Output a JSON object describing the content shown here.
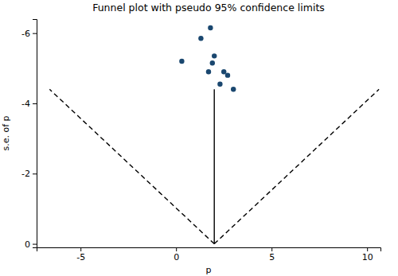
{
  "chart_data": {
    "type": "scatter",
    "title": "Funnel plot with pseudo 95% confidence limits",
    "x_label": "p",
    "y_label": "s.e. of p",
    "xlim": [
      -7.3,
      10.7
    ],
    "ylim": [
      0.1,
      -6.4
    ],
    "xticks": [
      -5,
      0,
      5,
      10
    ],
    "yticks": [
      -6,
      -4,
      -2,
      0
    ],
    "grid": false,
    "series": [
      {
        "type": "scatter",
        "color": "#1a476f",
        "marker": "circle",
        "x": [
          0.3,
          1.3,
          1.8,
          2.0,
          1.9,
          1.7,
          2.5,
          2.7,
          2.3,
          3.0
        ],
        "values": [
          -5.2,
          -5.85,
          -6.15,
          -5.35,
          -5.15,
          -4.9,
          -4.9,
          -4.8,
          -4.55,
          -4.4
        ]
      },
      {
        "type": "line",
        "color": "#000000",
        "line_style": "solid",
        "x": [
          2.0,
          2.0
        ],
        "values": [
          0,
          -4.4
        ]
      },
      {
        "type": "line",
        "color": "#000000",
        "line_style": "dashed",
        "x": [
          2.0,
          -6.62
        ],
        "values": [
          0,
          -4.4
        ]
      },
      {
        "type": "line",
        "color": "#000000",
        "line_style": "dashed",
        "x": [
          2.0,
          10.62
        ],
        "values": [
          0,
          -4.4
        ]
      }
    ]
  }
}
